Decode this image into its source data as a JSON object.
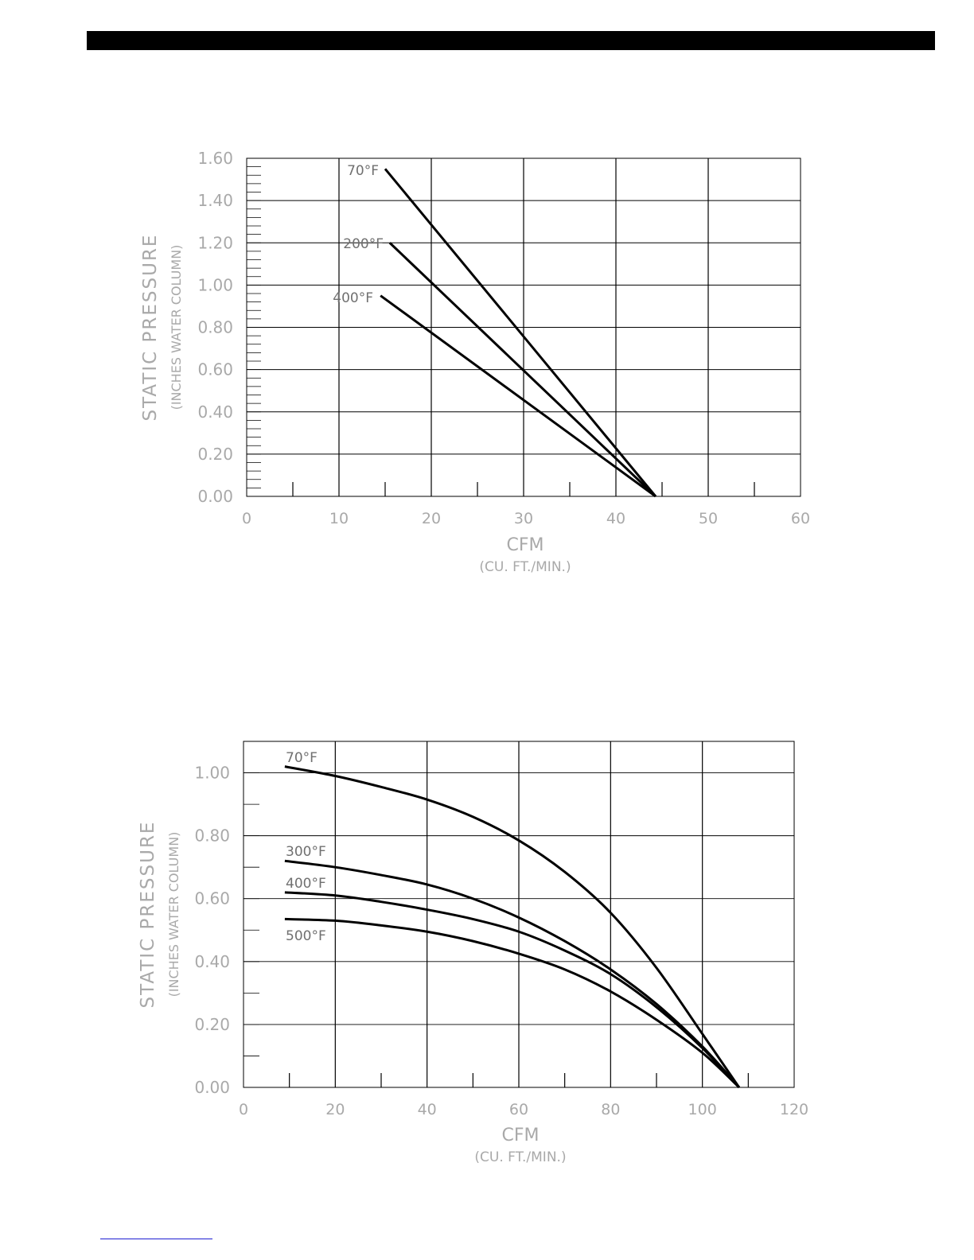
{
  "chart_data": [
    {
      "type": "line",
      "xlabel": "CFM",
      "xlabel_sub": "(CU. FT./MIN.)",
      "ylabel": "STATIC PRESSURE",
      "ylabel_sub": "(INCHES WATER COLUMN)",
      "xlim": [
        0,
        60
      ],
      "ylim": [
        0,
        1.6
      ],
      "x_ticks": [
        "0",
        "10",
        "20",
        "30",
        "40",
        "50",
        "60"
      ],
      "y_ticks": [
        "0.00",
        "0.20",
        "0.40",
        "0.60",
        "0.80",
        "1.00",
        "1.20",
        "1.40",
        "1.60"
      ],
      "grid": true,
      "series": [
        {
          "name": "70°F",
          "x": [
            15,
            44.3
          ],
          "y": [
            1.55,
            0.0
          ]
        },
        {
          "name": "200°F",
          "x": [
            15.5,
            44.3
          ],
          "y": [
            1.2,
            0.0
          ]
        },
        {
          "name": "400°F",
          "x": [
            14.5,
            44.3
          ],
          "y": [
            0.95,
            0.0
          ]
        }
      ]
    },
    {
      "type": "line",
      "xlabel": "CFM",
      "xlabel_sub": "(CU. FT./MIN.)",
      "ylabel": "STATIC PRESSURE",
      "ylabel_sub": "(INCHES WATER COLUMN)",
      "xlim": [
        0,
        120
      ],
      "ylim": [
        0,
        1.1
      ],
      "x_ticks": [
        "0",
        "20",
        "40",
        "60",
        "80",
        "100",
        "120"
      ],
      "y_ticks": [
        "0.00",
        "0.20",
        "0.40",
        "0.60",
        "0.80",
        "1.00"
      ],
      "grid": true,
      "series": [
        {
          "name": "70°F",
          "x": [
            9,
            20,
            30,
            40,
            50,
            60,
            70,
            80,
            90,
            100,
            108
          ],
          "y": [
            1.02,
            0.99,
            0.955,
            0.915,
            0.86,
            0.785,
            0.685,
            0.555,
            0.38,
            0.17,
            0.0
          ]
        },
        {
          "name": "300°F",
          "x": [
            9,
            20,
            30,
            40,
            50,
            60,
            70,
            80,
            90,
            100,
            108
          ],
          "y": [
            0.72,
            0.7,
            0.675,
            0.645,
            0.6,
            0.54,
            0.465,
            0.375,
            0.265,
            0.13,
            0.0
          ]
        },
        {
          "name": "400°F",
          "x": [
            9,
            20,
            30,
            40,
            50,
            60,
            70,
            80,
            90,
            100,
            108
          ],
          "y": [
            0.62,
            0.61,
            0.59,
            0.565,
            0.535,
            0.495,
            0.435,
            0.36,
            0.255,
            0.125,
            0.0
          ]
        },
        {
          "name": "500°F",
          "x": [
            9,
            20,
            30,
            40,
            50,
            60,
            70,
            80,
            90,
            100,
            108
          ],
          "y": [
            0.535,
            0.53,
            0.515,
            0.495,
            0.465,
            0.425,
            0.375,
            0.305,
            0.215,
            0.11,
            0.0
          ]
        }
      ]
    }
  ]
}
